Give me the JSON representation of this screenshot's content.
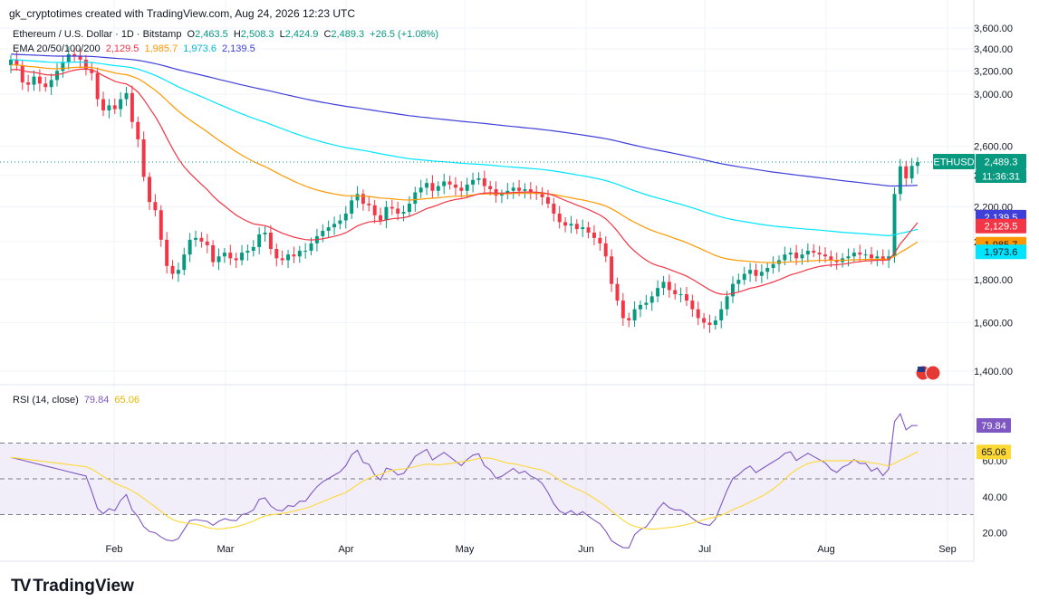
{
  "header": {
    "credit": "gk_cryptotimes created with TradingView.com, Aug 24, 2026 12:23 UTC"
  },
  "legend": {
    "symbol": "Ethereum / U.S. Dollar · 1D · Bitstamp",
    "o_label": "O",
    "o": "2,463.5",
    "h_label": "H",
    "h": "2,508.3",
    "l_label": "L",
    "l": "2,424.9",
    "c_label": "C",
    "c": "2,489.3",
    "change": "+26.5 (+1.08%)",
    "ema_label": "EMA 20/50/100/200",
    "ema20": "2,129.5",
    "ema50": "1,985.7",
    "ema100": "1,973.6",
    "ema200": "2,139.5",
    "rsi_label": "RSI (14, close)",
    "rsi": "79.84",
    "rsi_ma": "65.06"
  },
  "badges": {
    "ticker": "ETHUSD",
    "price": "2,489.3",
    "countdown": "11:36:31"
  },
  "logo_text": "TradingView",
  "colors": {
    "up": "#089981",
    "down": "#f23645",
    "ema20": "#f23645",
    "ema50": "#ff9800",
    "ema100": "#00e5ff",
    "ema200": "#3f3fd9",
    "rsi": "#7e57c2",
    "rsi_ma": "#fdd835",
    "price_badge": "#089981"
  },
  "chart_data": {
    "type": "candlestick",
    "title": "Ethereum / U.S. Dollar · 1D · Bitstamp",
    "price_axis": {
      "ticks": [
        1400,
        1600,
        1800,
        2000,
        2200,
        2400,
        2600,
        3000,
        3200,
        3400,
        3600
      ],
      "scale": "log"
    },
    "x_axis": {
      "ticks": [
        "Feb",
        "Mar",
        "Apr",
        "May",
        "Jun",
        "Jul",
        "Aug",
        "Sep"
      ]
    },
    "last_price": 2489.3,
    "ohlc_last": {
      "open": 2463.5,
      "high": 2508.3,
      "low": 2424.9,
      "close": 2489.3
    },
    "daily_closes": {
      "start": "Jan 1",
      "values": [
        3300,
        3250,
        3100,
        3080,
        3150,
        3090,
        3060,
        3120,
        3200,
        3280,
        3350,
        3330,
        3300,
        3210,
        3180,
        2960,
        2870,
        2910,
        2880,
        2960,
        3010,
        2780,
        2650,
        2390,
        2230,
        2180,
        2010,
        1870,
        1830,
        1850,
        1930,
        2010,
        2020,
        2000,
        1980,
        1890,
        1920,
        1940,
        1910,
        1900,
        1940,
        1950,
        1970,
        2040,
        2050,
        1960,
        1910,
        1900,
        1930,
        1920,
        1950,
        1950,
        1990,
        2030,
        2060,
        2080,
        2100,
        2120,
        2160,
        2240,
        2280,
        2220,
        2210,
        2150,
        2120,
        2200,
        2190,
        2160,
        2170,
        2220,
        2290,
        2320,
        2350,
        2300,
        2330,
        2360,
        2340,
        2320,
        2300,
        2340,
        2370,
        2380,
        2330,
        2310,
        2270,
        2280,
        2300,
        2320,
        2300,
        2310,
        2290,
        2280,
        2260,
        2220,
        2160,
        2110,
        2090,
        2100,
        2070,
        2080,
        2050,
        2020,
        1990,
        1920,
        1780,
        1700,
        1620,
        1610,
        1660,
        1680,
        1690,
        1720,
        1760,
        1790,
        1750,
        1730,
        1730,
        1700,
        1660,
        1620,
        1600,
        1590,
        1610,
        1660,
        1720,
        1780,
        1800,
        1830,
        1850,
        1820,
        1840,
        1860,
        1880,
        1900,
        1930,
        1940,
        1910,
        1930,
        1950,
        1940,
        1930,
        1920,
        1900,
        1890,
        1910,
        1920,
        1940,
        1930,
        1930,
        1910,
        1920,
        1900,
        1920,
        2280,
        2460,
        2380,
        2463,
        2489
      ]
    },
    "ema_last": {
      "EMA20": 2129.5,
      "EMA50": 1985.7,
      "EMA100": 1973.6,
      "EMA200": 2139.5
    },
    "rsi": {
      "axis_ticks": [
        20,
        40,
        60
      ],
      "bands": [
        30,
        50,
        70
      ],
      "last": 79.84,
      "ma_last": 65.06
    }
  }
}
